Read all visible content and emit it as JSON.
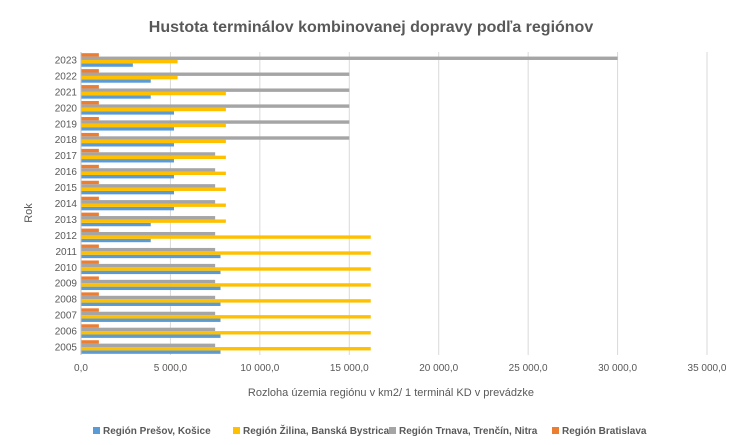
{
  "chart_data": {
    "type": "bar",
    "orientation": "horizontal",
    "title": "Hustota terminálov kombinovanej dopravy podľa regiónov",
    "xlabel": "Rozloha územia regiónu v km2/ 1 terminál KD v prevádzke",
    "ylabel": "Rok",
    "xlim": [
      0,
      35000
    ],
    "x_ticks": [
      0,
      5000,
      10000,
      15000,
      20000,
      25000,
      30000,
      35000
    ],
    "x_tick_labels": [
      "0,0",
      "5 000,0",
      "10 000,0",
      "15 000,0",
      "20 000,0",
      "25 000,0",
      "30 000,0",
      "35 000,0"
    ],
    "grid": true,
    "legend_position": "bottom",
    "categories": [
      "2005",
      "2006",
      "2007",
      "2008",
      "2009",
      "2010",
      "2011",
      "2012",
      "2013",
      "2014",
      "2015",
      "2016",
      "2017",
      "2018",
      "2019",
      "2020",
      "2021",
      "2022",
      "2023"
    ],
    "series": [
      {
        "name": "Región Prešov, Košice",
        "color": "#5B9BD5",
        "values": [
          7800,
          7800,
          7800,
          7800,
          7800,
          7800,
          7800,
          3900,
          3900,
          5200,
          5200,
          5200,
          5200,
          5200,
          5200,
          5200,
          3900,
          3900,
          2900
        ]
      },
      {
        "name": "Región Žilina, Banská Bystrica",
        "color": "#FFC000",
        "values": [
          16200,
          16200,
          16200,
          16200,
          16200,
          16200,
          16200,
          16200,
          8100,
          8100,
          8100,
          8100,
          8100,
          8100,
          8100,
          8100,
          8100,
          5400,
          5400
        ]
      },
      {
        "name": "Región Trnava, Trenčín, Nitra",
        "color": "#A5A5A5",
        "values": [
          7500,
          7500,
          7500,
          7500,
          7500,
          7500,
          7500,
          7500,
          7500,
          7500,
          7500,
          7500,
          7500,
          15000,
          15000,
          15000,
          15000,
          15000,
          30000
        ]
      },
      {
        "name": "Región Bratislava",
        "color": "#ED7D31",
        "values": [
          1000,
          1000,
          1000,
          1000,
          1000,
          1000,
          1000,
          1000,
          1000,
          1000,
          1000,
          1000,
          1000,
          1000,
          1000,
          1000,
          1000,
          1000,
          1000
        ]
      }
    ]
  }
}
